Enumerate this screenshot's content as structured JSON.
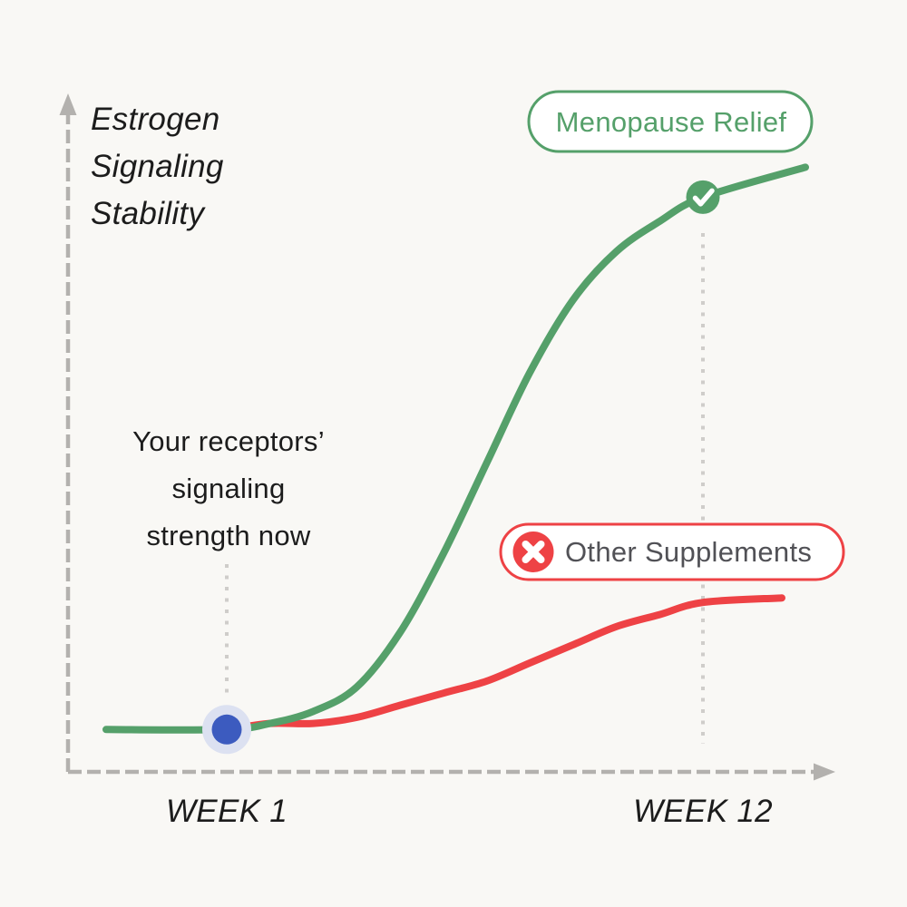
{
  "canvas": {
    "background": "#f9f8f5"
  },
  "colors": {
    "green": "#55a06a",
    "red": "#ee4245",
    "blue_dot": "#3c5bbf",
    "blue_halo": "#dce1f1",
    "axis_gray": "#b3b1ae",
    "guide_gray": "#cfcdca",
    "text_dark": "#1c1c1c",
    "text_gray": "#515156",
    "badge_fill": "#ffffff",
    "icon_white": "#ffffff"
  },
  "y_axis": {
    "label_lines": [
      "Estrogen",
      "Signaling",
      "Stability"
    ]
  },
  "x_axis": {
    "ticks": [
      "WEEK 1",
      "WEEK 12"
    ]
  },
  "annotation": {
    "lines": [
      "Your receptors’",
      "signaling",
      "strength now"
    ]
  },
  "badges": {
    "menopause_relief": {
      "label": "Menopause Relief"
    },
    "other_supplements": {
      "label": "Other Supplements"
    }
  },
  "chart_data": {
    "type": "line",
    "title": "",
    "ylabel": "Estrogen Signaling Stability",
    "xlabel": "",
    "x_tick_labels": [
      "WEEK 1",
      "WEEK 12"
    ],
    "x_weeks": [
      1,
      2,
      3,
      4,
      5,
      6,
      7,
      8,
      9,
      10,
      11,
      12
    ],
    "ylim": [
      0,
      100
    ],
    "y_axis_numeric_labels": "none",
    "grid": false,
    "legend_position": "inline-badges",
    "series": [
      {
        "name": "Menopause Relief",
        "color": "#55a06a",
        "values": [
          7,
          8,
          10,
          14,
          23,
          36,
          51,
          66,
          78,
          86,
          91,
          95
        ],
        "end_marker": "green-check-circle"
      },
      {
        "name": "Other Supplements",
        "color": "#ee4245",
        "values": [
          7,
          8,
          8,
          9,
          11,
          13,
          15,
          18,
          21,
          24,
          26,
          28
        ],
        "end_marker": "none"
      }
    ],
    "annotations": [
      {
        "text": "Your receptors’ signaling strength now",
        "week": 1,
        "series": "both",
        "marker": "blue-dot"
      },
      {
        "text": "Menopause Relief",
        "week": 12,
        "series": "Menopause Relief",
        "marker": "green-check"
      }
    ]
  }
}
